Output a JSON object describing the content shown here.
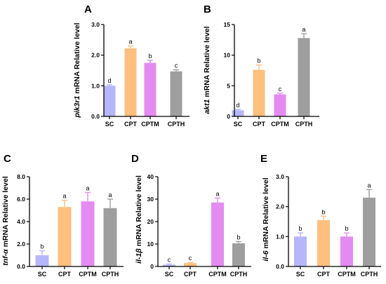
{
  "colors": {
    "SC": "#b6b6fa",
    "CPT": "#ffbf7f",
    "CPTM": "#e38bf0",
    "CPTH": "#9e9e9e",
    "axis": "#000000"
  },
  "chart_data": [
    {
      "type": "bar",
      "panel": "A",
      "gene": "pik3r1",
      "ylabel_suffix": " mRNA Relative level",
      "categories": [
        "SC",
        "CPT",
        "CPTM",
        "CPTH"
      ],
      "values": [
        1.0,
        2.22,
        1.75,
        1.47
      ],
      "errors": [
        0.03,
        0.08,
        0.08,
        0.05
      ],
      "labels": [
        "d",
        "a",
        "b",
        "c"
      ],
      "ylim": [
        0,
        3.0
      ],
      "yticks": [
        "0.0",
        "1.0",
        "2.0",
        "3.0"
      ],
      "ytick_values": [
        0,
        1,
        2,
        3
      ]
    },
    {
      "type": "bar",
      "panel": "B",
      "gene": "akt1",
      "ylabel_suffix": " mRNA Relative level",
      "categories": [
        "SC",
        "CPT",
        "CPTM",
        "CPTH"
      ],
      "values": [
        1.0,
        7.6,
        3.6,
        12.8
      ],
      "errors": [
        0.15,
        0.8,
        0.2,
        0.7
      ],
      "labels": [
        "d",
        "b",
        "c",
        "a"
      ],
      "ylim": [
        0,
        15
      ],
      "yticks": [
        "0",
        "5",
        "10",
        "15"
      ],
      "ytick_values": [
        0,
        5,
        10,
        15
      ]
    },
    {
      "type": "bar",
      "panel": "C",
      "gene": "tnf-α",
      "ylabel_suffix": " mRNA Relative level",
      "categories": [
        "SC",
        "CPT",
        "CPTM",
        "CPTH"
      ],
      "values": [
        1.0,
        5.3,
        5.8,
        5.2
      ],
      "errors": [
        0.4,
        0.6,
        0.8,
        0.8
      ],
      "labels": [
        "b",
        "a",
        "a",
        "a"
      ],
      "ylim": [
        0,
        8.0
      ],
      "yticks": [
        "0.0",
        "2.0",
        "4.0",
        "6.0",
        "8.0"
      ],
      "ytick_values": [
        0,
        2,
        4,
        6,
        8
      ]
    },
    {
      "type": "bar",
      "panel": "D",
      "gene": "il-1β",
      "ylabel_suffix": " mRNA Relative level",
      "categories": [
        "SC",
        "CPT",
        "CPTM",
        "CPTH"
      ],
      "values": [
        0.8,
        1.5,
        28.5,
        10.3
      ],
      "errors": [
        0.3,
        0.3,
        2.0,
        0.8
      ],
      "labels": [
        "c",
        "c",
        "a",
        "b"
      ],
      "ylim": [
        0,
        40
      ],
      "yticks": [
        "0",
        "10",
        "20",
        "30",
        "40"
      ],
      "ytick_values": [
        0,
        10,
        20,
        30,
        40
      ]
    },
    {
      "type": "bar",
      "panel": "E",
      "gene": "il-6",
      "ylabel_suffix": " mRNA Relative level",
      "categories": [
        "SC",
        "CPT",
        "CPTM",
        "CPTH"
      ],
      "values": [
        1.0,
        1.55,
        1.0,
        2.3
      ],
      "errors": [
        0.12,
        0.13,
        0.12,
        0.27
      ],
      "labels": [
        "b",
        "b",
        "b",
        "a"
      ],
      "ylim": [
        0,
        3.0
      ],
      "yticks": [
        "0.0",
        "1.0",
        "2.0",
        "3.0"
      ],
      "ytick_values": [
        0,
        1,
        2,
        3
      ]
    }
  ]
}
